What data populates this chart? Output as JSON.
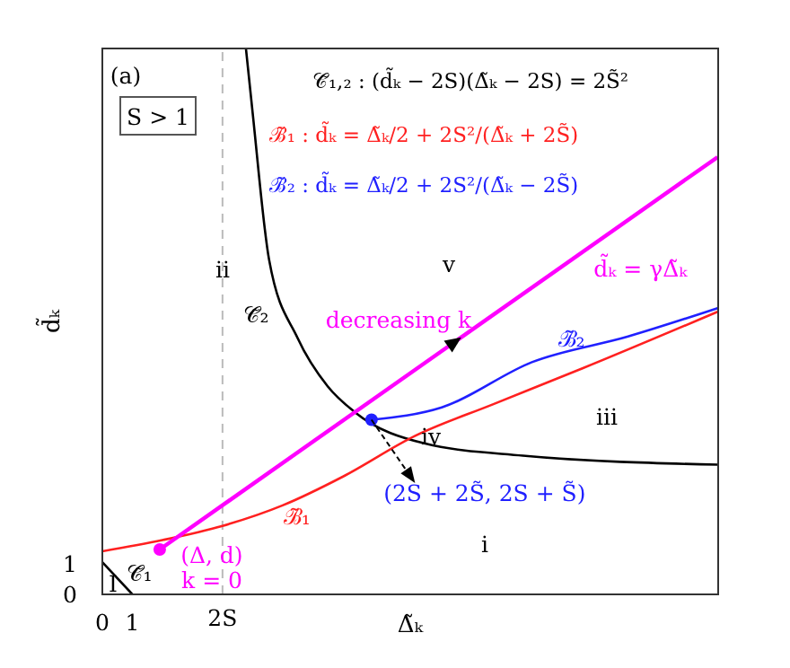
{
  "chart_data": {
    "type": "line",
    "xlabel": "Δ̃ₖ",
    "ylabel": "d̃ₖ",
    "xlim": [
      0,
      20.5
    ],
    "ylim": [
      0,
      18.1
    ],
    "xticks": [
      0,
      1
    ],
    "yticks": [
      0,
      1
    ],
    "grid": false,
    "legend": false,
    "line_style": "solid",
    "series": [
      {
        "name": "𝒞̃₂",
        "color": "#000000",
        "x": [
          4.78,
          5.0,
          5.55,
          6.5,
          7.5,
          8.42,
          10.75,
          14,
          20.48
        ],
        "values": [
          18.1,
          16,
          11.1,
          8.5,
          6.9,
          6.03,
          5.0,
          4.6,
          4.3
        ]
      },
      {
        "name": "𝒞̃₁",
        "color": "#000000",
        "x": [
          0,
          1
        ],
        "values": [
          1.07,
          0
        ]
      },
      {
        "name": "ℬ̃₁",
        "color": "#ff2020",
        "x": [
          0,
          2,
          4,
          6,
          8,
          10.4,
          13,
          16,
          20.48
        ],
        "values": [
          1.43,
          1.8,
          2.27,
          2.95,
          3.9,
          5.25,
          6.3,
          7.5,
          9.37
        ]
      },
      {
        "name": "ℬ̃₂",
        "color": "#2020ff",
        "x": [
          8.96,
          11.3,
          14.3,
          17.5,
          20.48
        ],
        "values": [
          5.79,
          6.2,
          7.7,
          8.55,
          9.49
        ]
      },
      {
        "name": "d̃ₖ = γΔ̃ₖ",
        "color": "#ff00ff",
        "x": [
          1.91,
          20.48
        ],
        "values": [
          1.49,
          14.5
        ]
      },
      {
        "type": "scatter",
        "name": "(Δ, d)",
        "color": "#ff00ff",
        "x": [
          1.91
        ],
        "values": [
          1.49
        ]
      },
      {
        "type": "scatter",
        "color": "#2020ff",
        "x": [
          8.96
        ],
        "values": [
          5.79
        ]
      }
    ],
    "ref_lines": [
      {
        "axis": "x",
        "value": 4,
        "label": "2S",
        "color": "#bbbbbb",
        "line_style": "dashed"
      }
    ],
    "annotations": [
      "(a)",
      "S > 1",
      "𝒞̃₁,₂ : (d̃ₖ − 2S)(Δ̃ₖ − 2S) = 2S̃²",
      "ℬ̃₁ : d̃ₖ = Δ̃ₖ/2 + 2S²/(Δ̃ₖ + 2S̃)",
      "ℬ̃₂ : d̃ₖ = Δ̃ₖ/2 + 2S²/(Δ̃ₖ − 2S̃)",
      "ii",
      "v",
      "decreasing k",
      "iv",
      "iii",
      "i",
      "k = 0",
      "I",
      {
        "text": "(2S + 2S̃, 2S + S̃)",
        "x": 8.96,
        "y": 5.79
      }
    ]
  }
}
